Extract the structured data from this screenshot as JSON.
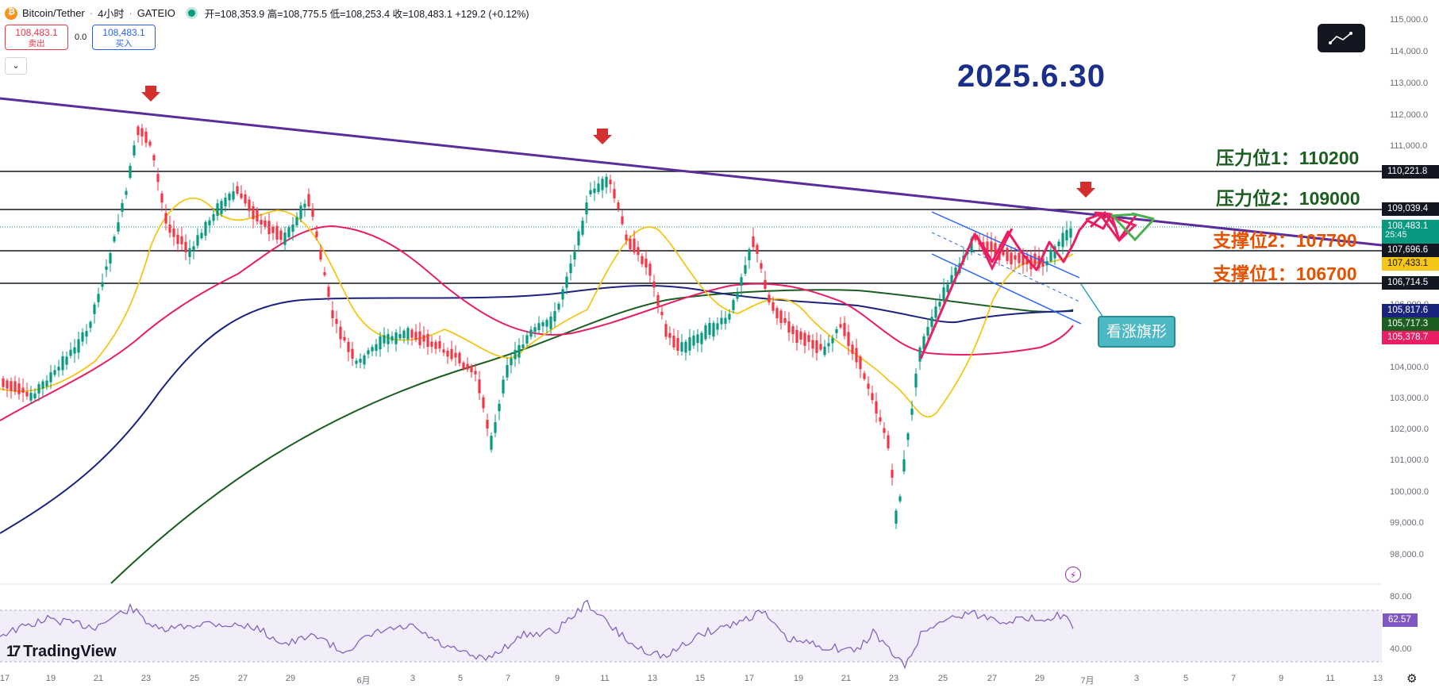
{
  "header": {
    "symbol": "Bitcoin/Tether",
    "interval": "4小时",
    "exchange": "GATEIO",
    "ohlc_text": "开=108,353.9 高=108,775.5 低=108,253.4 收=108,483.1 +129.2 (+0.12%)"
  },
  "trade": {
    "sell_price": "108,483.1",
    "sell_label": "卖出",
    "spread": "0.0",
    "buy_price": "108,483.1",
    "buy_label": "买入"
  },
  "annotations": {
    "date_title": "2025.6.30",
    "resistance1": "压力位1：110200",
    "resistance2": "压力位2：109000",
    "support2": "支撑位2：107700",
    "support1": "支撑位1：106700",
    "pattern_label": "看涨旗形"
  },
  "price_axis": {
    "ticks": [
      "115,000.0",
      "114,000.0",
      "113,000.0",
      "112,000.0",
      "111,000.0",
      "110,000.0",
      "109,000.0",
      "108,000.0",
      "107,000.0",
      "106,000.0",
      "105,000.0",
      "104,000.0",
      "103,000.0",
      "102,000.0",
      "101,000.0",
      "100,000.0",
      "99,000.0",
      "98,000.0"
    ],
    "labels": {
      "l110221": "110,221.8",
      "l109039": "109,039.4",
      "current": "108,483.1",
      "timer": "25:45",
      "l107696": "107,696.6",
      "l107433": "107,433.1",
      "l106714": "106,714.5",
      "l105817": "105,817.6",
      "l105717": "105,717.3",
      "l105378": "105,378.7"
    }
  },
  "rsi": {
    "ticks": [
      "80.00",
      "40.00"
    ],
    "value": "62.57"
  },
  "time_axis": [
    "17",
    "19",
    "21",
    "23",
    "25",
    "27",
    "29",
    "6月",
    "3",
    "5",
    "7",
    "9",
    "11",
    "13",
    "15",
    "17",
    "19",
    "21",
    "23",
    "25",
    "27",
    "29",
    "7月",
    "3",
    "5",
    "7",
    "9",
    "11",
    "13"
  ],
  "branding": {
    "name": "TradingView"
  },
  "colors": {
    "trendline": "#5b2c9c",
    "up": "#089981",
    "down": "#f23645",
    "ma_yellow": "#f5c518",
    "ma_red": "#e91e63",
    "ma_blue": "#1a237e",
    "ma_green": "#1b5e20",
    "rsi": "#7e57c2"
  }
}
